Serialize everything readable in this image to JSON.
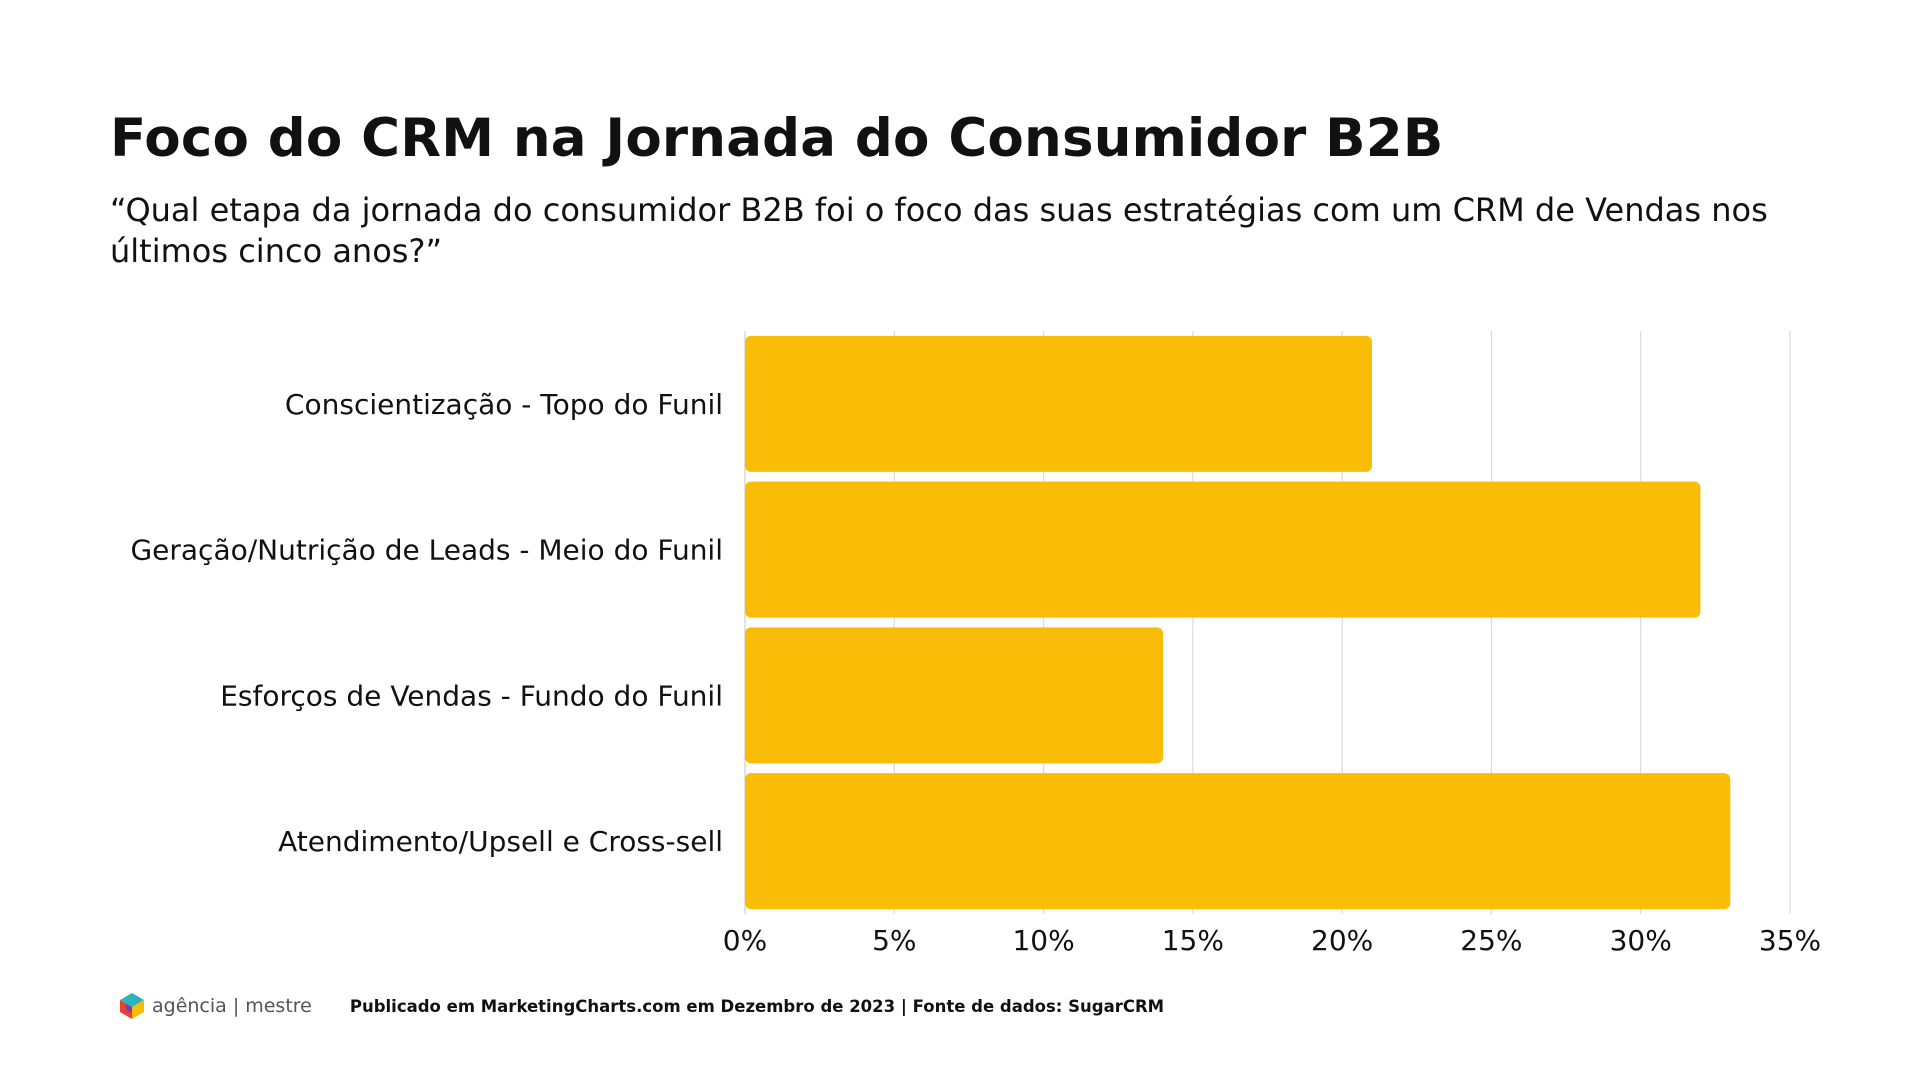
{
  "title": "Foco do CRM na Jornada do Consumidor B2B",
  "subtitle": "“Qual etapa da jornada do consumidor B2B foi o foco das suas estratégias com um CRM de Vendas nos últimos cinco anos?”",
  "chart_data": {
    "type": "bar",
    "orientation": "horizontal",
    "title": "Foco do CRM na Jornada do Consumidor B2B",
    "categories": [
      "Conscientização - Topo do Funil",
      "Geração/Nutrição de Leads - Meio do Funil",
      "Esforços de Vendas - Fundo do Funil",
      "Atendimento/Upsell e Cross-sell"
    ],
    "values": [
      21,
      32,
      14,
      33
    ],
    "unit": "%",
    "xlim": [
      0,
      35
    ],
    "xticks": [
      0,
      5,
      10,
      15,
      20,
      25,
      30,
      35
    ],
    "xtick_labels": [
      "0%",
      "5%",
      "10%",
      "15%",
      "20%",
      "25%",
      "30%",
      "35%"
    ],
    "xlabel": "",
    "ylabel": "",
    "grid": true,
    "bar_color": "#F9BD07",
    "grid_color": "#D9D9D9"
  },
  "footer": {
    "logo_text_left": "agência",
    "logo_separator": "|",
    "logo_text_right": "mestre",
    "source": "Publicado em MarketingCharts.com em Dezembro de 2023 | Fonte de dados: SugarCRM"
  }
}
